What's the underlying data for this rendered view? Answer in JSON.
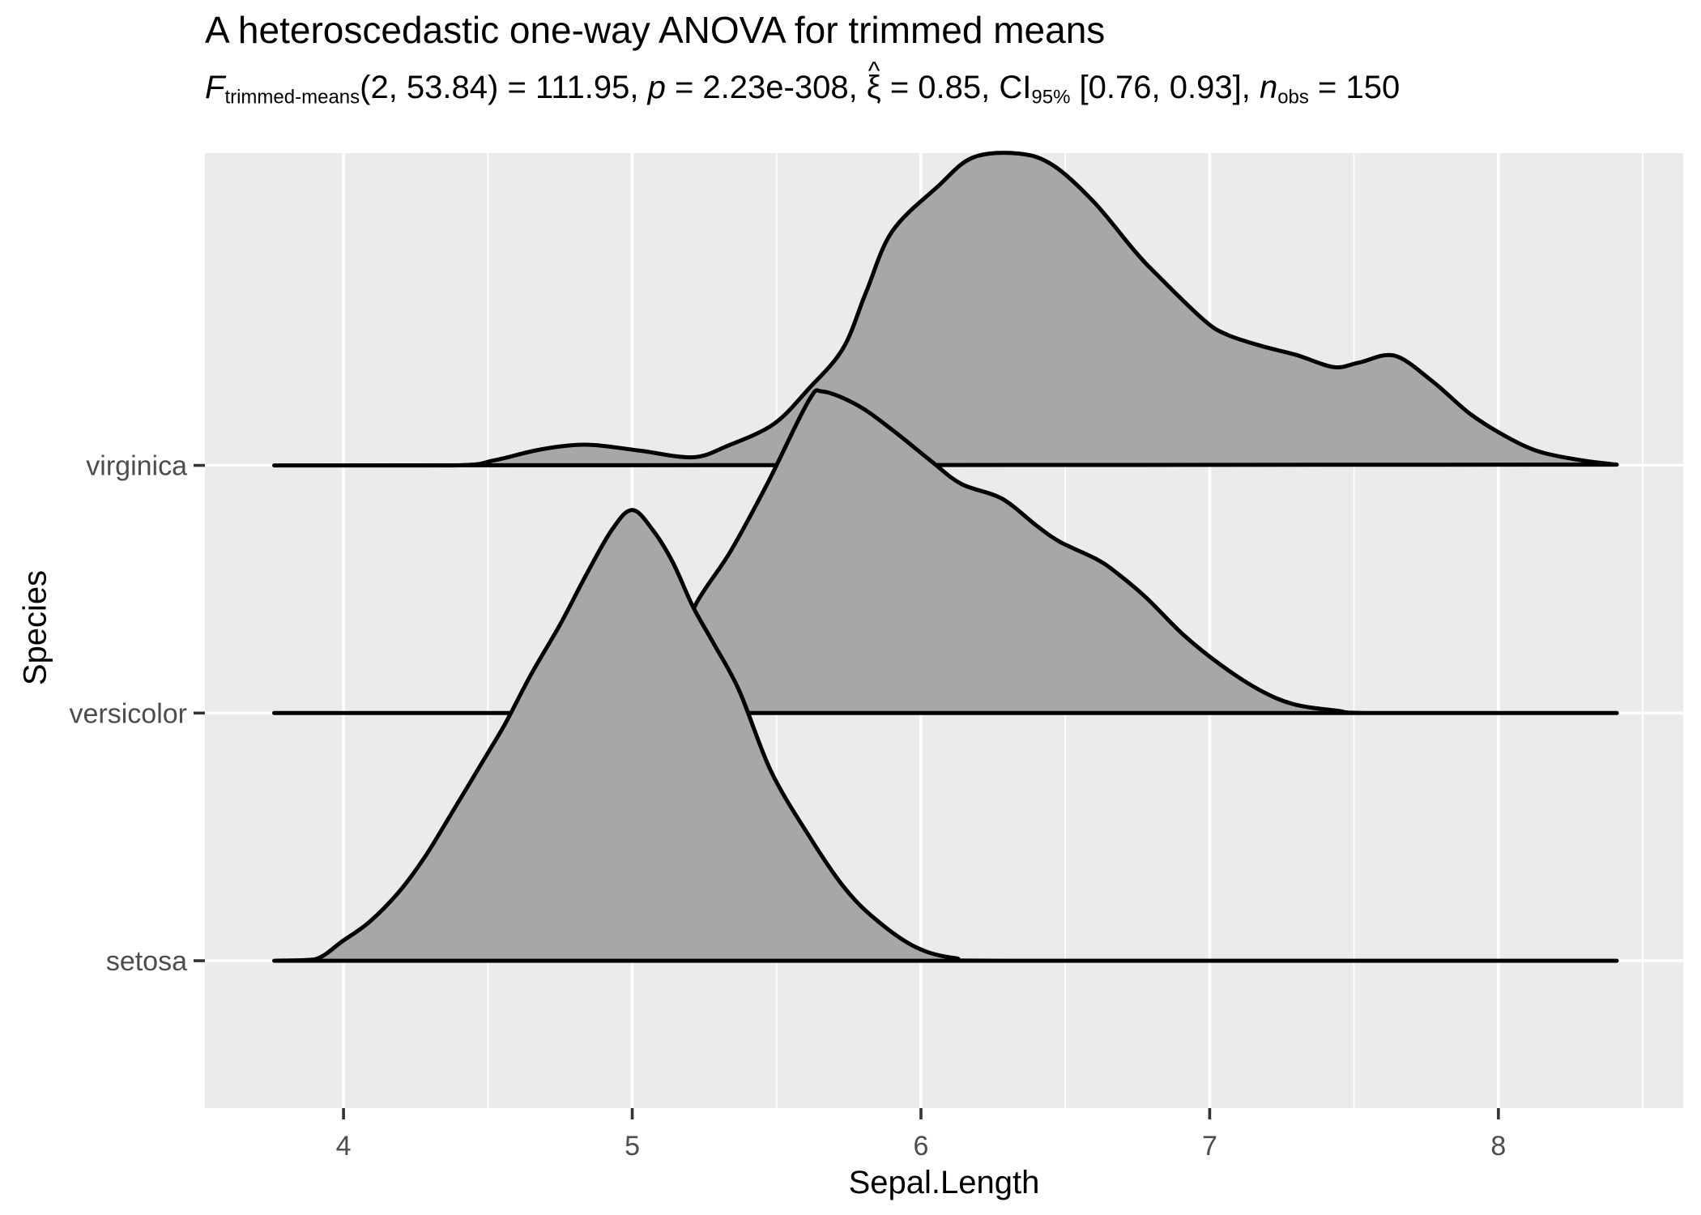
{
  "title": "A heteroscedastic one-way ANOVA for trimmed means",
  "subtitle_parts": [
    {
      "t": "F",
      "style": "italic"
    },
    {
      "t": "trimmed-means",
      "style": "sub"
    },
    {
      "t": "(2, 53.84) = 111.95, ",
      "style": ""
    },
    {
      "t": "p",
      "style": "italic"
    },
    {
      "t": " = 2.23e-308, ",
      "style": ""
    },
    {
      "t": "ξ",
      "style": "hat"
    },
    {
      "t": " = 0.85, CI",
      "style": ""
    },
    {
      "t": "95%",
      "style": "sub"
    },
    {
      "t": " [0.76, 0.93], ",
      "style": ""
    },
    {
      "t": "n",
      "style": "italic"
    },
    {
      "t": "obs",
      "style": "sub"
    },
    {
      "t": " = 150",
      "style": ""
    }
  ],
  "x_axis": {
    "label": "Sepal.Length",
    "tick_labels": [
      "4",
      "5",
      "6",
      "7",
      "8"
    ],
    "tick_values": [
      4,
      5,
      6,
      7,
      8
    ],
    "minor_tick_values": [
      4.5,
      5.5,
      6.5,
      7.5,
      8.5
    ]
  },
  "y_axis": {
    "label": "Species",
    "categories": [
      {
        "name": "virginica",
        "row": 3
      },
      {
        "name": "versicolor",
        "row": 2
      },
      {
        "name": "setosa",
        "row": 1
      }
    ]
  },
  "colors": {
    "panel_bg": "#EBEBEB",
    "grid": "#FFFFFF",
    "ridge_fill": "#A7A7A7",
    "ridge_stroke": "#000000",
    "axis_text": "#4D4D4D",
    "tick_mark": "#333333",
    "title_text": "#000000"
  },
  "chart_data": {
    "type": "area",
    "variant": "ridgeline-density",
    "title": "A heteroscedastic one-way ANOVA for trimmed means",
    "xlabel": "Sepal.Length",
    "ylabel": "Species",
    "xlim": [
      3.52,
      8.64
    ],
    "row_lim": [
      0.405,
      4.261
    ],
    "grid": "on",
    "legend": "none",
    "height_unit": "fraction of one category row spacing",
    "series": [
      {
        "name": "virginica",
        "row": 3,
        "points": [
          [
            3.76,
            0
          ],
          [
            4.38,
            0
          ],
          [
            4.52,
            0.02
          ],
          [
            4.66,
            0.059
          ],
          [
            4.77,
            0.079
          ],
          [
            4.87,
            0.082
          ],
          [
            5.03,
            0.059
          ],
          [
            5.21,
            0.033
          ],
          [
            5.33,
            0.079
          ],
          [
            5.49,
            0.167
          ],
          [
            5.61,
            0.308
          ],
          [
            5.73,
            0.472
          ],
          [
            5.81,
            0.7
          ],
          [
            5.9,
            0.944
          ],
          [
            6.06,
            1.128
          ],
          [
            6.18,
            1.243
          ],
          [
            6.34,
            1.259
          ],
          [
            6.46,
            1.21
          ],
          [
            6.6,
            1.062
          ],
          [
            6.74,
            0.866
          ],
          [
            6.82,
            0.767
          ],
          [
            6.98,
            0.587
          ],
          [
            7.06,
            0.528
          ],
          [
            7.18,
            0.482
          ],
          [
            7.3,
            0.446
          ],
          [
            7.43,
            0.397
          ],
          [
            7.52,
            0.416
          ],
          [
            7.64,
            0.443
          ],
          [
            7.77,
            0.341
          ],
          [
            7.9,
            0.21
          ],
          [
            8.02,
            0.121
          ],
          [
            8.14,
            0.056
          ],
          [
            8.29,
            0.02
          ],
          [
            8.41,
            0.003
          ]
        ]
      },
      {
        "name": "versicolor",
        "row": 2,
        "points": [
          [
            3.76,
            0
          ],
          [
            4.55,
            0
          ],
          [
            4.77,
            0.01
          ],
          [
            4.89,
            0.023
          ],
          [
            5.0,
            0.052
          ],
          [
            5.14,
            0.21
          ],
          [
            5.22,
            0.439
          ],
          [
            5.34,
            0.652
          ],
          [
            5.47,
            0.931
          ],
          [
            5.61,
            1.259
          ],
          [
            5.66,
            1.298
          ],
          [
            5.78,
            1.243
          ],
          [
            5.9,
            1.144
          ],
          [
            6.04,
            1.013
          ],
          [
            6.14,
            0.925
          ],
          [
            6.28,
            0.866
          ],
          [
            6.4,
            0.757
          ],
          [
            6.48,
            0.692
          ],
          [
            6.61,
            0.62
          ],
          [
            6.68,
            0.564
          ],
          [
            6.78,
            0.466
          ],
          [
            6.91,
            0.315
          ],
          [
            7.04,
            0.193
          ],
          [
            7.17,
            0.095
          ],
          [
            7.29,
            0.036
          ],
          [
            7.44,
            0.01
          ],
          [
            7.58,
            0
          ],
          [
            8.41,
            0
          ]
        ]
      },
      {
        "name": "setosa",
        "row": 1,
        "points": [
          [
            3.76,
            0
          ],
          [
            3.9,
            0.005
          ],
          [
            4.0,
            0.082
          ],
          [
            4.09,
            0.157
          ],
          [
            4.19,
            0.275
          ],
          [
            4.28,
            0.416
          ],
          [
            4.37,
            0.587
          ],
          [
            4.49,
            0.82
          ],
          [
            4.56,
            0.957
          ],
          [
            4.65,
            1.157
          ],
          [
            4.75,
            1.357
          ],
          [
            4.84,
            1.557
          ],
          [
            4.93,
            1.741
          ],
          [
            5.0,
            1.82
          ],
          [
            5.07,
            1.741
          ],
          [
            5.14,
            1.61
          ],
          [
            5.21,
            1.43
          ],
          [
            5.28,
            1.285
          ],
          [
            5.37,
            1.092
          ],
          [
            5.48,
            0.767
          ],
          [
            5.61,
            0.508
          ],
          [
            5.73,
            0.302
          ],
          [
            5.84,
            0.17
          ],
          [
            5.98,
            0.056
          ],
          [
            6.12,
            0.01
          ],
          [
            6.32,
            0
          ],
          [
            8.41,
            0
          ]
        ]
      }
    ]
  }
}
